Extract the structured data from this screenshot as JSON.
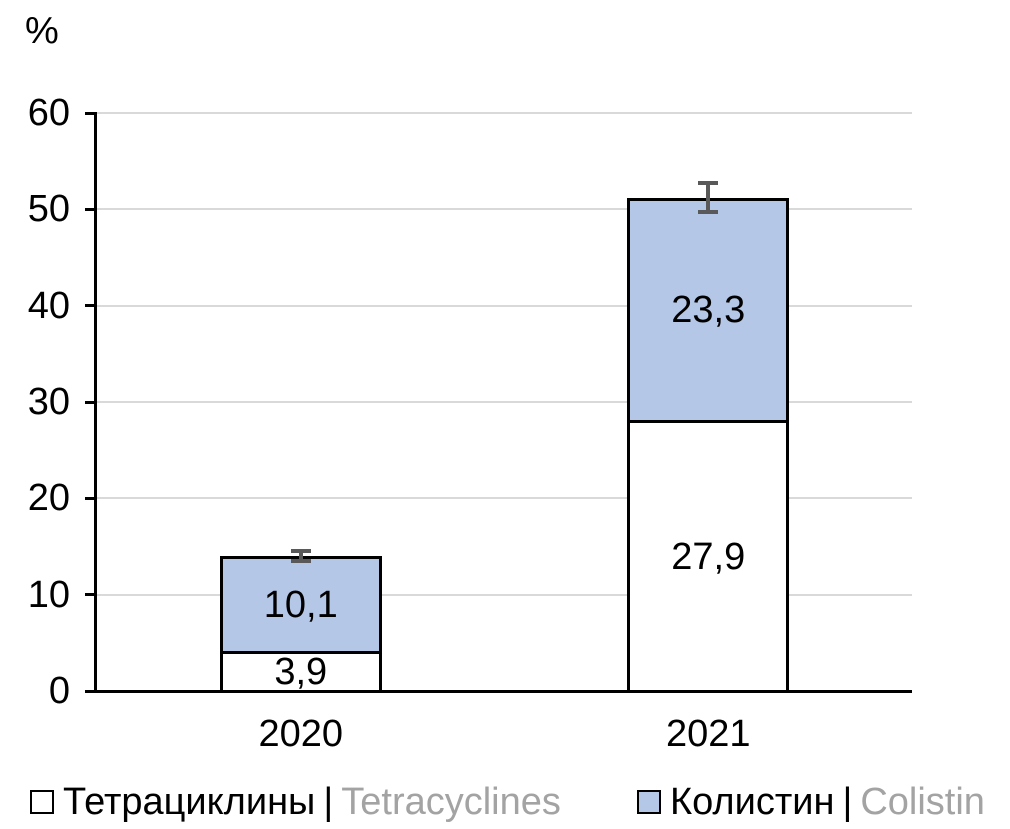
{
  "chart_data": {
    "type": "bar",
    "subtype": "stacked",
    "title": "",
    "unit_label": "%",
    "categories": [
      "2020",
      "2021"
    ],
    "series": [
      {
        "name": "Тетрациклины | Tetracyclines",
        "name_ru": "Тетрациклины",
        "name_en": "Tetracyclines",
        "color": "#FFFFFF",
        "values": [
          3.9,
          27.9
        ],
        "value_labels": [
          "3,9",
          "27,9"
        ]
      },
      {
        "name": "Колистин | Colistin",
        "name_ru": "Колистин",
        "name_en": "Colistin",
        "color": "#B4C7E7",
        "values": [
          10.1,
          23.3
        ],
        "value_labels": [
          "10,1",
          "23,3"
        ]
      }
    ],
    "stack_totals": [
      14.0,
      51.2
    ],
    "error_bars_plus_minus": [
      0.5,
      1.5
    ],
    "ylim": [
      0,
      60
    ],
    "y_ticks": [
      0,
      10,
      20,
      30,
      40,
      50,
      60
    ],
    "grid": true,
    "legend_position": "bottom"
  },
  "legend": {
    "items": [
      {
        "label_ru": "Тетрациклины",
        "separator": "|",
        "label_en": "Tetracyclines",
        "swatch_color": "#FFFFFF"
      },
      {
        "label_ru": "Колистин",
        "separator": "|",
        "label_en": "Colistin",
        "swatch_color": "#B4C7E7"
      }
    ]
  },
  "colors": {
    "tetracyclines_fill": "#FFFFFF",
    "colistin_fill": "#B4C7E7",
    "bar_border": "#000000",
    "axis": "#000000",
    "gridline": "#D9D9D9",
    "error_bar": "#595959",
    "text": "#000000",
    "secondary_text": "#A3A3A3"
  }
}
